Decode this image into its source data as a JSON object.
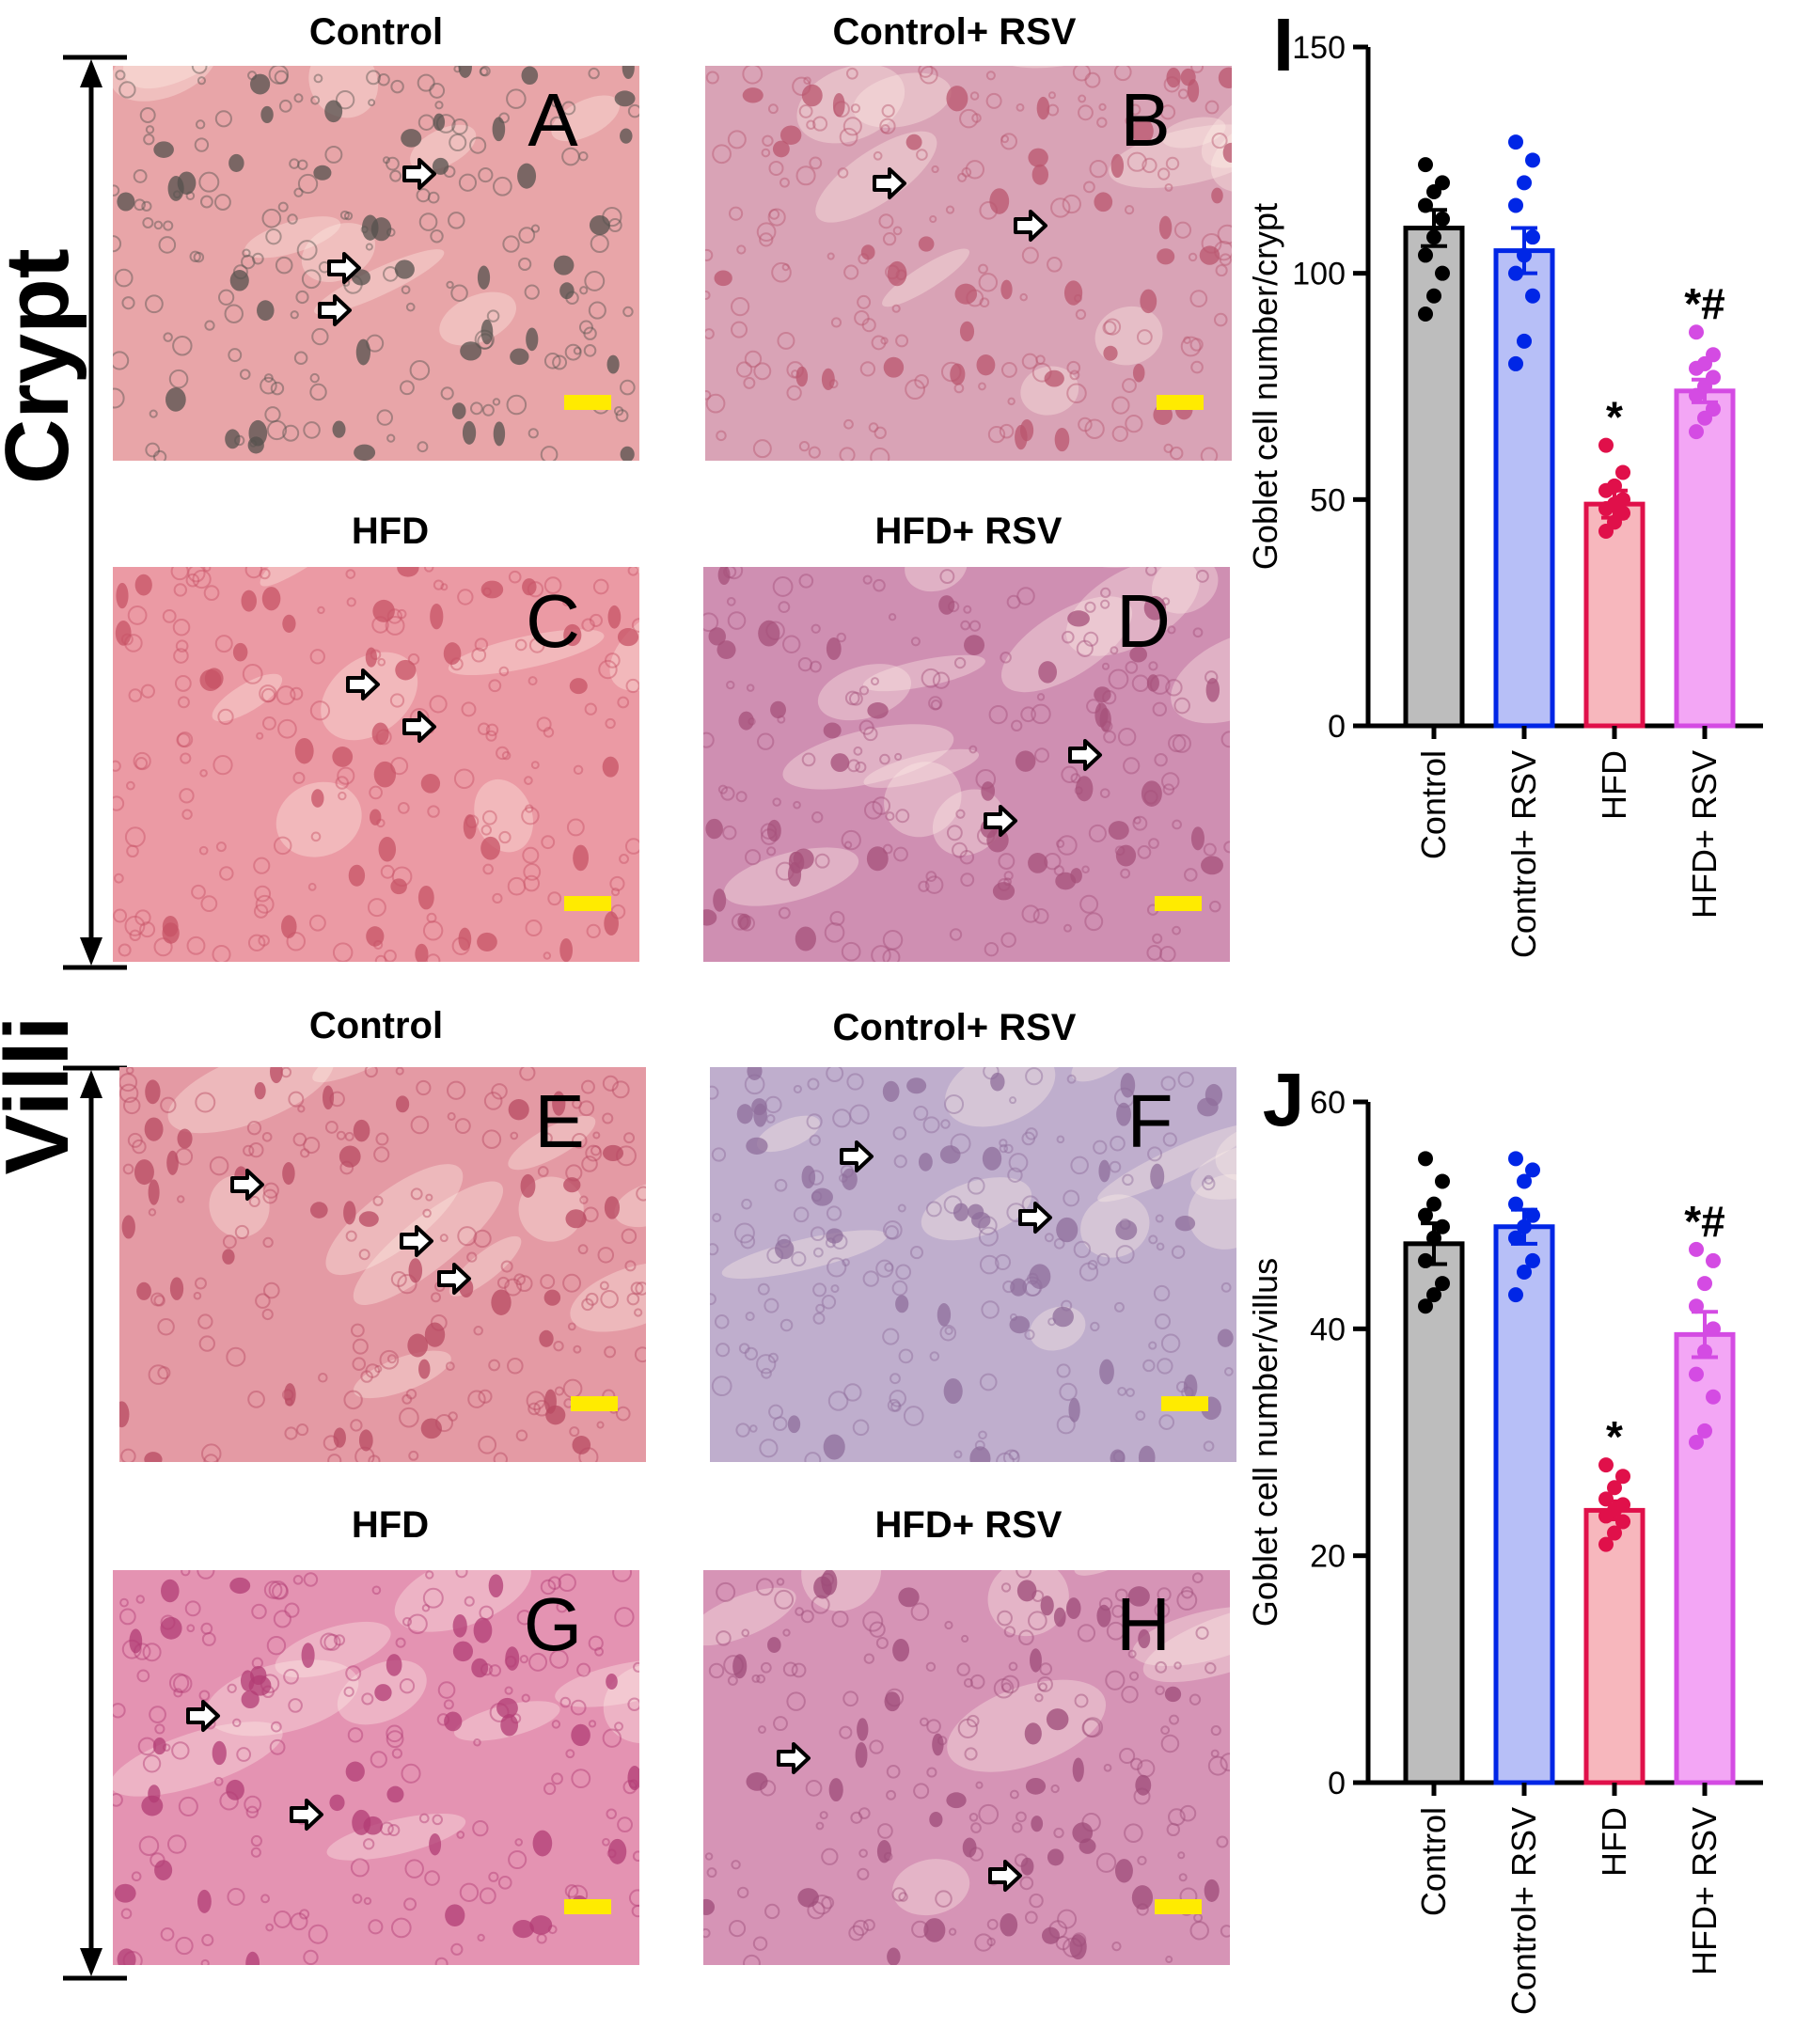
{
  "sections": {
    "crypt_label": "Crypt",
    "villi_label": "Villi"
  },
  "panels": [
    {
      "letter": "A",
      "title": "Control",
      "tint": "#e8a5a8",
      "cell": "#55524e"
    },
    {
      "letter": "B",
      "title": "Control+ RSV",
      "tint": "#d9a3b6",
      "cell": "#b9566e"
    },
    {
      "letter": "C",
      "title": "HFD",
      "tint": "#eb9aa4",
      "cell": "#c75366"
    },
    {
      "letter": "D",
      "title": "HFD+ RSV",
      "tint": "#cf8fb2",
      "cell": "#a5507a"
    },
    {
      "letter": "E",
      "title": "Control",
      "tint": "#e49aa4",
      "cell": "#b84a62"
    },
    {
      "letter": "F",
      "title": "Control+ RSV",
      "tint": "#bfaecd",
      "cell": "#8f6d9b"
    },
    {
      "letter": "G",
      "title": "HFD",
      "tint": "#e493b2",
      "cell": "#b23c74"
    },
    {
      "letter": "H",
      "title": "HFD+ RSV",
      "tint": "#d694b6",
      "cell": "#9e4b78"
    }
  ],
  "colors": {
    "scale_bar": "#ffeb00",
    "control": "#bdbdbd",
    "control_rsv": "#b7bff7",
    "hfd": "#f7b7bd",
    "hfd_rsv": "#f3a6f5",
    "control_dot": "#000000",
    "control_rsv_dot": "#0026e6",
    "hfd_dot": "#e0104a",
    "hfd_rsv_dot": "#d44be3"
  },
  "chart_data": [
    {
      "panel": "I",
      "type": "bar",
      "ylabel": "Goblet cell number/crypt",
      "ylim": [
        0,
        150
      ],
      "yticks": [
        "0",
        "50",
        "100",
        "150"
      ],
      "categories": [
        "Control",
        "Control+ RSV",
        "HFD",
        "HFD+ RSV"
      ],
      "values": [
        110,
        105,
        49,
        74
      ],
      "errors": [
        4,
        5,
        3,
        2.5
      ],
      "annotations": [
        "",
        "",
        "*",
        "*#"
      ],
      "points": [
        [
          91,
          95,
          100,
          104,
          108,
          112,
          115,
          118,
          120,
          124
        ],
        [
          80,
          85,
          95,
          100,
          104,
          108,
          115,
          120,
          125,
          129
        ],
        [
          43,
          45,
          47,
          48,
          49,
          50,
          52,
          53,
          56,
          62
        ],
        [
          65,
          68,
          70,
          73,
          75,
          77,
          79,
          80,
          82,
          87
        ]
      ]
    },
    {
      "panel": "J",
      "type": "bar",
      "ylabel": "Goblet cell number/villus",
      "ylim": [
        0,
        60
      ],
      "yticks": [
        "0",
        "20",
        "40",
        "60"
      ],
      "categories": [
        "Control",
        "Control+ RSV",
        "HFD",
        "HFD+ RSV"
      ],
      "values": [
        47.5,
        49,
        24,
        39.5
      ],
      "errors": [
        1.8,
        1.5,
        0.8,
        2
      ],
      "annotations": [
        "",
        "",
        "*",
        "*#"
      ],
      "points": [
        [
          42,
          43,
          44,
          46,
          48,
          49,
          50,
          51,
          53,
          55
        ],
        [
          43,
          45,
          46,
          48,
          49,
          50,
          51,
          53,
          54,
          55
        ],
        [
          21,
          22,
          23,
          23.5,
          24,
          24.5,
          25,
          26,
          27,
          28
        ],
        [
          30,
          31,
          34,
          36,
          38,
          40,
          42,
          44,
          46,
          47
        ]
      ]
    }
  ]
}
